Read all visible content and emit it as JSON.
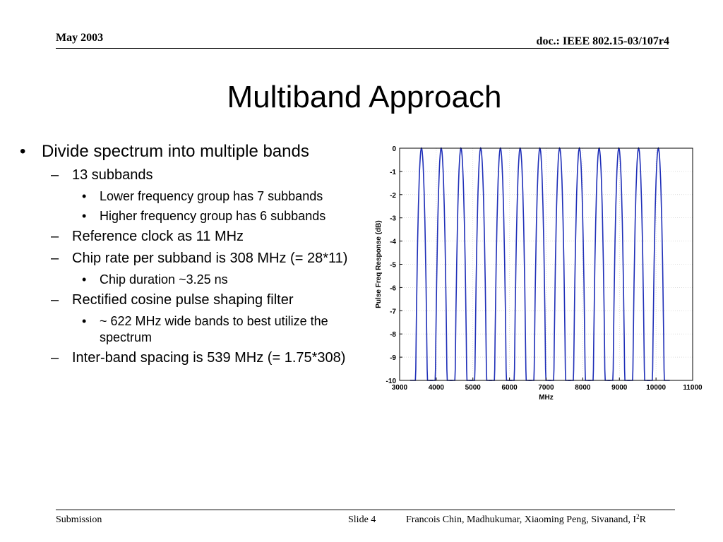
{
  "header": {
    "date": "May 2003",
    "doc": "doc.: IEEE 802.15-03/107r4"
  },
  "title": "Multiband Approach",
  "bullets": {
    "b1": "Divide spectrum into multiple bands",
    "b1_1": "13 subbands",
    "b1_1_1": "Lower frequency group has 7 subbands",
    "b1_1_2": "Higher frequency group has 6 subbands",
    "b1_2": "Reference clock as 11 MHz",
    "b1_3": "Chip rate per subband is 308 MHz (= 28*11)",
    "b1_3_1": "Chip duration ~3.25 ns",
    "b1_4": "Rectified cosine pulse shaping filter",
    "b1_4_1": "~ 622 MHz wide bands to best utilize the spectrum",
    "b1_5": "Inter-band spacing is 539 MHz (= 1.75*308)"
  },
  "chart_data": {
    "type": "line",
    "title": "",
    "xlabel": "MHz",
    "ylabel": "Pulse Freq Response (dB)",
    "xlim": [
      3000,
      11000
    ],
    "ylim": [
      -10,
      0
    ],
    "xticks": [
      3000,
      4000,
      5000,
      6000,
      7000,
      8000,
      9000,
      10000,
      11000
    ],
    "yticks": [
      0,
      -1,
      -2,
      -3,
      -4,
      -5,
      -6,
      -7,
      -8,
      -9,
      -10
    ],
    "grid": true,
    "band_centers": [
      3596,
      4135,
      4674,
      5213,
      5752,
      6291,
      6830,
      7369,
      7908,
      8447,
      8986,
      9525,
      10064
    ],
    "band_width_at_minus10dB": 622,
    "line_color": "#1f2fb8"
  },
  "footer": {
    "left": "Submission",
    "slide": "Slide 4",
    "authors": "Francois Chin, Madhukumar, Xiaoming Peng, Sivanand, I",
    "authors_sup": "2",
    "authors_end": "R"
  }
}
